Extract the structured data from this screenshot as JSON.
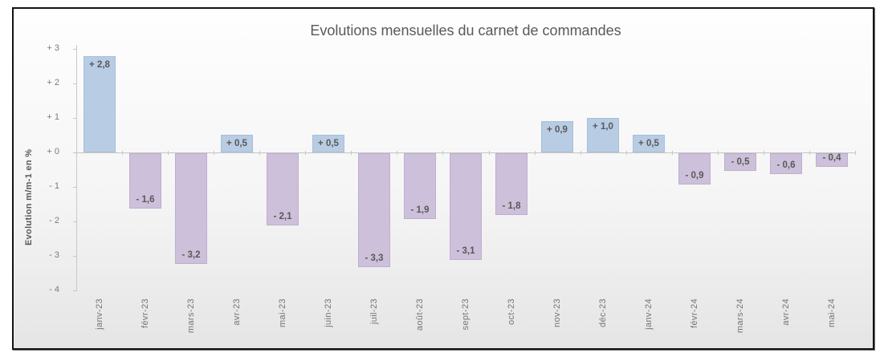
{
  "chart_data": {
    "type": "bar",
    "title": "Evolutions mensuelles du carnet de commandes",
    "xlabel": "",
    "ylabel": "Evolution m/m-1 en %",
    "ylim": [
      -4,
      3
    ],
    "grid": false,
    "legend": null,
    "categories": [
      "janv-23",
      "févr-23",
      "mars-23",
      "avr-23",
      "mai-23",
      "juin-23",
      "juil-23",
      "août-23",
      "sept-23",
      "oct-23",
      "nov-23",
      "déc-23",
      "janv-24",
      "févr-24",
      "mars-24",
      "avr-24",
      "mai-24"
    ],
    "values": [
      2.8,
      -1.6,
      -3.2,
      0.5,
      -2.1,
      0.5,
      -3.3,
      -1.9,
      -3.1,
      -1.8,
      0.9,
      1.0,
      0.5,
      -0.9,
      -0.5,
      -0.6,
      -0.4
    ],
    "labels": [
      "+ 2,8",
      "- 1,6",
      "- 3,2",
      "+ 0,5",
      "- 2,1",
      "+ 0,5",
      "- 3,3",
      "- 1,9",
      "- 3,1",
      "- 1,8",
      "+ 0,9",
      "+ 1,0",
      "+ 0,5",
      "- 0,9",
      "- 0,5",
      "- 0,6",
      "- 0,4"
    ],
    "y_ticks": [
      "+ 3",
      "+ 2",
      "+ 1",
      "+ 0",
      "- 1",
      "- 2",
      "- 3",
      "- 4"
    ],
    "colors": {
      "positive_fill": "#b8cce4",
      "positive_border": "#a6bfda",
      "negative_fill": "#ccc0da",
      "negative_border": "#beafce",
      "data_label": "#595959",
      "axis_text": "#7a7a7a",
      "axis_line": "#c6c6c6",
      "title_text": "#595959",
      "frame_border": "#141414"
    }
  }
}
